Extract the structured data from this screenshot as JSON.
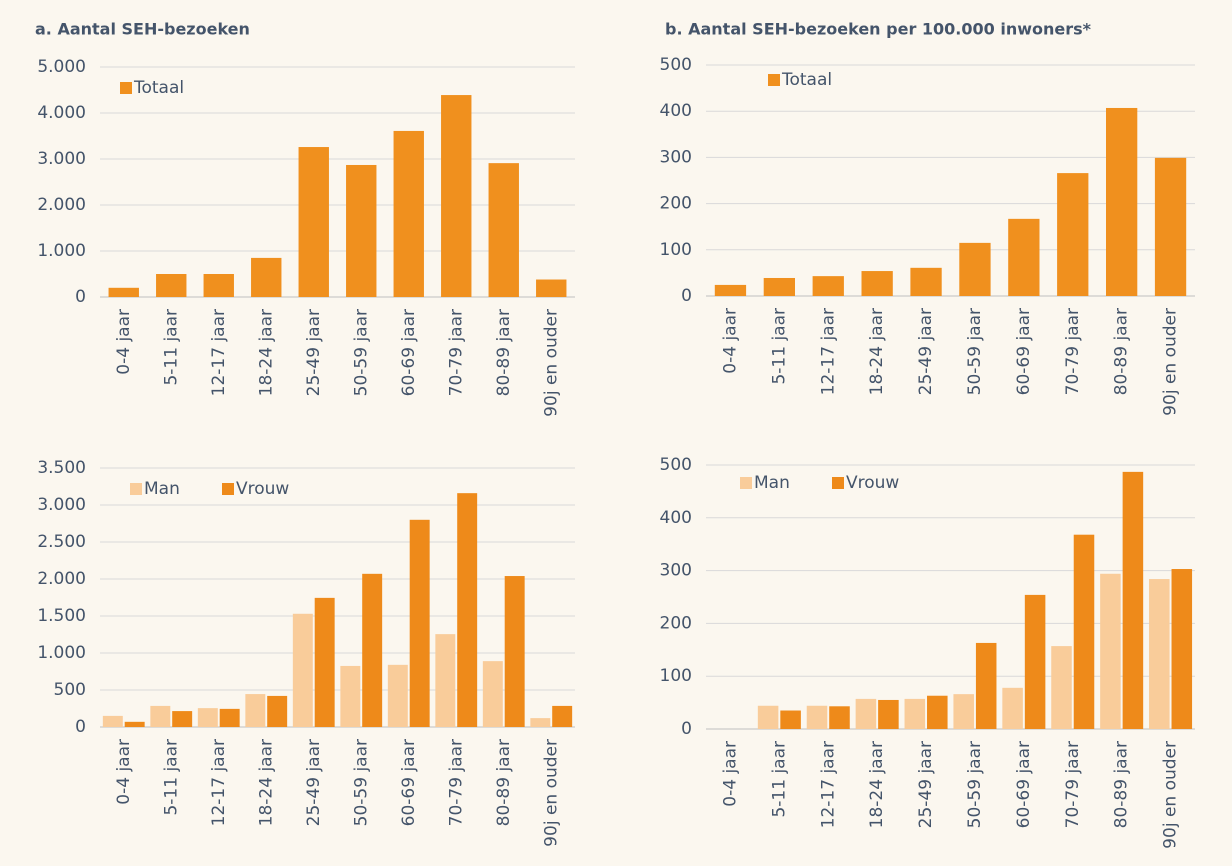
{
  "chart_data": [
    {
      "type": "bar",
      "title": "a. Aantal SEH-bezoeken",
      "categories": [
        "0-4 jaar",
        "5-11 jaar",
        "12-17 jaar",
        "18-24 jaar",
        "25-49 jaar",
        "50-59 jaar",
        "60-69 jaar",
        "70-79 jaar",
        "80-89 jaar",
        "90j en ouder"
      ],
      "series": [
        {
          "name": "Totaal",
          "color": "#f0901e",
          "values": [
            200,
            500,
            500,
            850,
            3260,
            2870,
            3610,
            4390,
            2910,
            380
          ]
        }
      ],
      "ylim": [
        0,
        5000
      ],
      "yticks": [
        0,
        {
          "value": 1000,
          "label": "1.000"
        },
        {
          "value": 2000,
          "label": "2.000"
        },
        {
          "value": 3000,
          "label": "3.000"
        },
        {
          "value": 4000,
          "label": "4.000"
        },
        {
          "value": 5000,
          "label": "5.000"
        }
      ],
      "grid": true,
      "legend": "top-left"
    },
    {
      "type": "bar",
      "title": "b. Aantal SEH-bezoeken per 100.000 inwoners*",
      "categories": [
        "0-4 jaar",
        "5-11 jaar",
        "12-17 jaar",
        "18-24 jaar",
        "25-49 jaar",
        "50-59 jaar",
        "60-69 jaar",
        "70-79 jaar",
        "80-89 jaar",
        "90j en ouder"
      ],
      "series": [
        {
          "name": "Totaal",
          "color": "#f0901e",
          "values": [
            24,
            39,
            43,
            54,
            61,
            115,
            167,
            266,
            407,
            299
          ]
        }
      ],
      "ylim": [
        0,
        500
      ],
      "yticks": [
        0,
        100,
        200,
        300,
        400,
        500
      ],
      "grid": true,
      "legend": "top-left"
    },
    {
      "type": "bar",
      "categories": [
        "0-4 jaar",
        "5-11 jaar",
        "12-17 jaar",
        "18-24 jaar",
        "25-49 jaar",
        "50-59 jaar",
        "60-69 jaar",
        "70-79 jaar",
        "80-89 jaar",
        "90j en ouder"
      ],
      "series": [
        {
          "name": "Man",
          "color": "#f9cc9a",
          "values": [
            150,
            285,
            255,
            445,
            1530,
            825,
            840,
            1255,
            890,
            120
          ]
        },
        {
          "name": "Vrouw",
          "color": "#ee8a1a",
          "values": [
            70,
            215,
            245,
            420,
            1745,
            2070,
            2800,
            3160,
            2040,
            285
          ]
        }
      ],
      "ylim": [
        0,
        3500
      ],
      "yticks": [
        0,
        500,
        {
          "value": 1000,
          "label": "1.000"
        },
        {
          "value": 1500,
          "label": "1.500"
        },
        {
          "value": 2000,
          "label": "2.000"
        },
        {
          "value": 2500,
          "label": "2.500"
        },
        {
          "value": 3000,
          "label": "3.000"
        },
        {
          "value": 3500,
          "label": "3.500"
        }
      ],
      "grid": true,
      "legend": "top-left"
    },
    {
      "type": "bar",
      "categories": [
        "0-4 jaar",
        "5-11 jaar",
        "12-17 jaar",
        "18-24 jaar",
        "25-49 jaar",
        "50-59 jaar",
        "60-69 jaar",
        "70-79 jaar",
        "80-89 jaar",
        "90j en ouder"
      ],
      "series": [
        {
          "name": "Man",
          "color": "#f9cc9a",
          "values": [
            0,
            44,
            44,
            57,
            57,
            66,
            78,
            157,
            294,
            284
          ]
        },
        {
          "name": "Vrouw",
          "color": "#ee8a1a",
          "values": [
            0,
            35,
            43,
            55,
            63,
            163,
            254,
            368,
            487,
            303
          ]
        }
      ],
      "ylim": [
        0,
        500
      ],
      "yticks": [
        0,
        100,
        200,
        300,
        400,
        500
      ],
      "grid": true,
      "legend": "top-left"
    }
  ]
}
